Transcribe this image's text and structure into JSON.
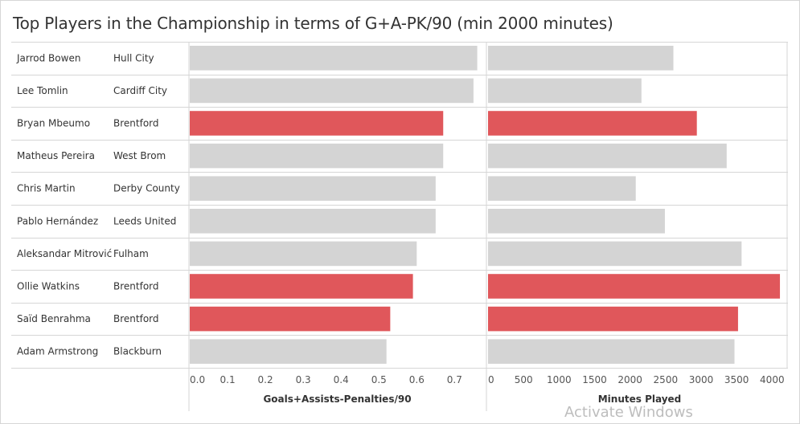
{
  "chart_data": {
    "type": "bar",
    "title": "Top Players in the Championship in terms of G+A-PK/90 (min 2000 minutes)",
    "categories": [
      {
        "player": "Jarrod Bowen",
        "team": "Hull City"
      },
      {
        "player": "Lee Tomlin",
        "team": "Cardiff City"
      },
      {
        "player": "Bryan Mbeumo",
        "team": "Brentford"
      },
      {
        "player": "Matheus Pereira",
        "team": "West Brom"
      },
      {
        "player": "Chris Martin",
        "team": "Derby County"
      },
      {
        "player": "Pablo Hernández",
        "team": "Leeds United"
      },
      {
        "player": "Aleksandar Mitrović",
        "team": "Fulham"
      },
      {
        "player": "Ollie Watkins",
        "team": "Brentford"
      },
      {
        "player": "Saïd Benrahma",
        "team": "Brentford"
      },
      {
        "player": "Adam Armstrong",
        "team": "Blackburn"
      }
    ],
    "panels": [
      {
        "xlabel": "Goals+Assists-Penalties/90",
        "ticks": [
          0.0,
          0.1,
          0.2,
          0.3,
          0.4,
          0.5,
          0.6,
          0.7
        ],
        "tick_labels": [
          "0.0",
          "0.1",
          "0.2",
          "0.3",
          "0.4",
          "0.5",
          "0.6",
          "0.7"
        ],
        "xlim": [
          0,
          0.78
        ],
        "values": [
          0.76,
          0.75,
          0.67,
          0.67,
          0.65,
          0.65,
          0.6,
          0.59,
          0.53,
          0.52
        ]
      },
      {
        "xlabel": "Minutes Played",
        "ticks": [
          0,
          500,
          1000,
          1500,
          2000,
          2500,
          3000,
          3500,
          4000
        ],
        "tick_labels": [
          "0",
          "500",
          "1000",
          "1500",
          "2000",
          "2500",
          "3000",
          "3500",
          "4000"
        ],
        "xlim": [
          0,
          4200
        ],
        "values": [
          2610,
          2160,
          2940,
          3360,
          2080,
          2490,
          3570,
          4110,
          3520,
          3470
        ]
      }
    ],
    "highlight_team": "Brentford",
    "colors": {
      "highlight": "#e0575b",
      "default": "#d4d4d4",
      "grid": "#d6d6d6"
    },
    "grid": true
  },
  "watermark": "Activate Windows"
}
